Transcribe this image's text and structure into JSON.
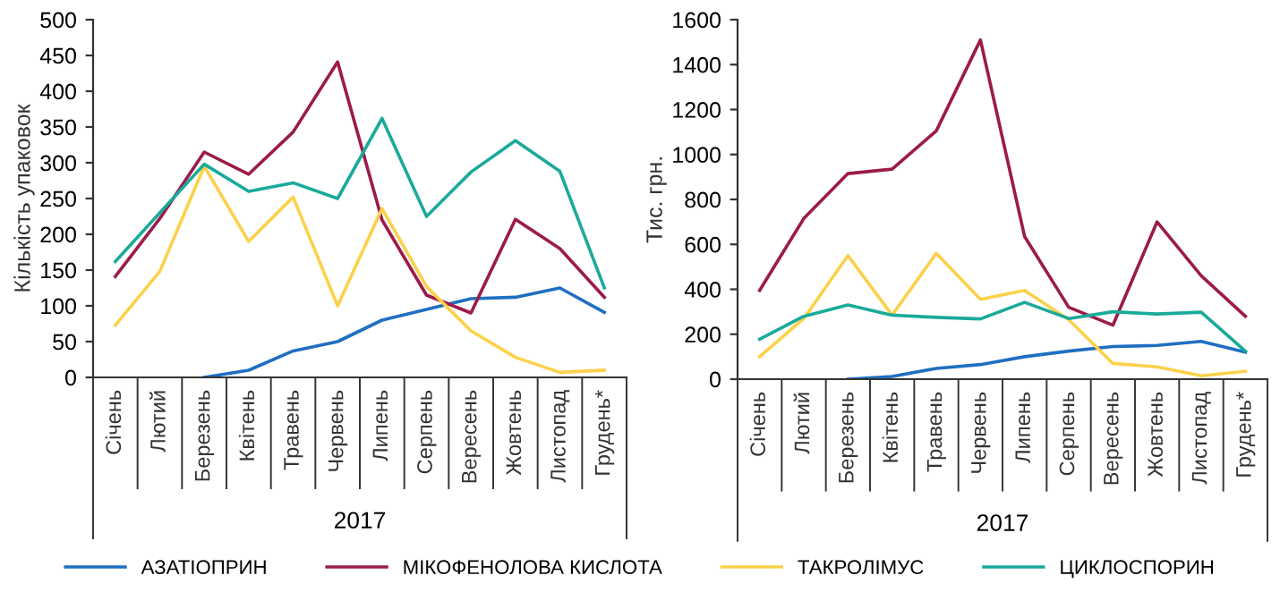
{
  "chart_data": [
    {
      "type": "line",
      "ylabel": "Кількість упаковок",
      "xlabel": "2017",
      "categories": [
        "Січень",
        "Лютий",
        "Березень",
        "Квітень",
        "Травень",
        "Червень",
        "Липень",
        "Серпень",
        "Вересень",
        "Жовтень",
        "Листопад",
        "Грудень*"
      ],
      "ylim": [
        0,
        500
      ],
      "yticks": [
        0,
        50,
        100,
        150,
        200,
        250,
        300,
        350,
        400,
        450,
        500
      ],
      "grid": false,
      "legend": "bottom",
      "series": [
        {
          "name": "АЗАТІОПРИН",
          "color": "#1f6fc1",
          "values": [
            null,
            null,
            0,
            10,
            37,
            50,
            80,
            95,
            110,
            112,
            125,
            91
          ]
        },
        {
          "name": "МІКОФЕНОЛОВА КИСЛОТА",
          "color": "#9b1b4a",
          "values": [
            141,
            222,
            315,
            284,
            343,
            441,
            220,
            115,
            90,
            221,
            180,
            112
          ]
        },
        {
          "name": "ТАКРОЛІМУС",
          "color": "#fcd14a",
          "values": [
            73,
            148,
            295,
            190,
            252,
            100,
            236,
            127,
            65,
            28,
            7,
            10
          ]
        },
        {
          "name": "ЦИКЛОСПОРИН",
          "color": "#1aaa9a",
          "values": [
            162,
            230,
            298,
            260,
            272,
            250,
            362,
            225,
            287,
            331,
            288,
            125
          ]
        }
      ]
    },
    {
      "type": "line",
      "ylabel": "Тис. грн.",
      "xlabel": "2017",
      "categories": [
        "Січень",
        "Лютий",
        "Березень",
        "Квітень",
        "Травень",
        "Червень",
        "Липень",
        "Серпень",
        "Вересень",
        "Жовтень",
        "Листопад",
        "Грудень*"
      ],
      "ylim": [
        0,
        1600
      ],
      "yticks": [
        0,
        200,
        400,
        600,
        800,
        1000,
        1200,
        1400,
        1600
      ],
      "grid": false,
      "legend": "bottom",
      "series": [
        {
          "name": "АЗАТІОПРИН",
          "color": "#1f6fc1",
          "values": [
            null,
            null,
            0,
            12,
            48,
            65,
            100,
            125,
            145,
            150,
            168,
            120
          ]
        },
        {
          "name": "МІКОФЕНОЛОВА КИСЛОТА",
          "color": "#9b1b4a",
          "values": [
            395,
            715,
            915,
            935,
            1105,
            1510,
            635,
            320,
            240,
            700,
            460,
            280
          ]
        },
        {
          "name": "ТАКРОЛІМУС",
          "color": "#fcd14a",
          "values": [
            100,
            270,
            550,
            285,
            560,
            355,
            395,
            265,
            70,
            55,
            15,
            35
          ]
        },
        {
          "name": "ЦИКЛОСПОРИН",
          "color": "#1aaa9a",
          "values": [
            178,
            280,
            330,
            285,
            275,
            268,
            342,
            270,
            300,
            290,
            298,
            125
          ]
        }
      ]
    }
  ]
}
